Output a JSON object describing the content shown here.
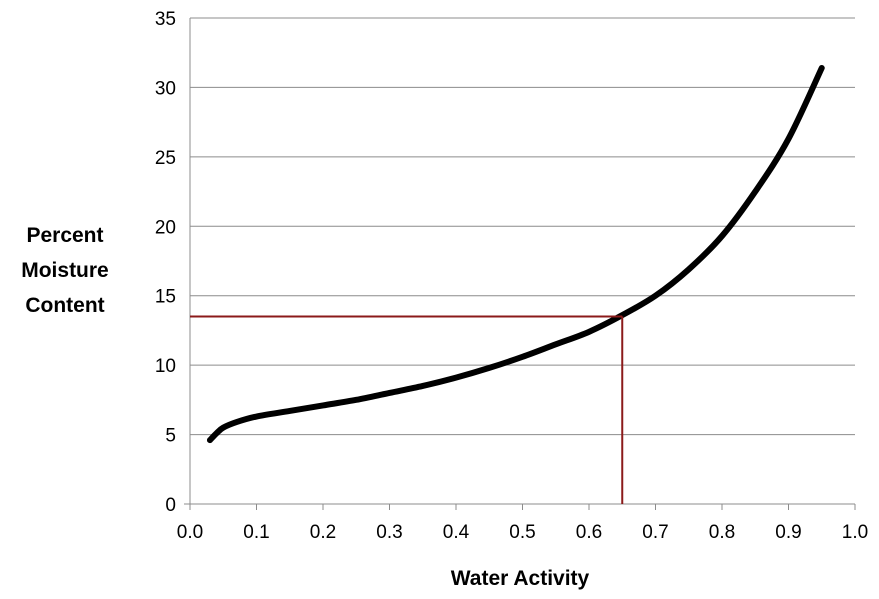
{
  "chart_data": {
    "type": "line",
    "xlabel": "Water Activity",
    "ylabel_lines": [
      "Percent",
      "Moisture",
      "Content"
    ],
    "xlim": [
      0.0,
      1.0
    ],
    "ylim": [
      0,
      35
    ],
    "x_ticks": [
      "0.0",
      "0.1",
      "0.2",
      "0.3",
      "0.4",
      "0.5",
      "0.6",
      "0.7",
      "0.8",
      "0.9",
      "1.0"
    ],
    "y_ticks": [
      "0",
      "5",
      "10",
      "15",
      "20",
      "25",
      "30",
      "35"
    ],
    "grid": "horizontal",
    "series": [
      {
        "color": "#000000",
        "x": [
          0.03,
          0.04,
          0.05,
          0.07,
          0.1,
          0.15,
          0.2,
          0.25,
          0.3,
          0.35,
          0.4,
          0.45,
          0.5,
          0.55,
          0.6,
          0.65,
          0.7,
          0.75,
          0.8,
          0.85,
          0.9,
          0.95
        ],
        "y": [
          4.6,
          5.1,
          5.5,
          5.9,
          6.3,
          6.7,
          7.1,
          7.5,
          8.0,
          8.5,
          9.1,
          9.8,
          10.6,
          11.5,
          12.4,
          13.6,
          15.0,
          16.9,
          19.3,
          22.5,
          26.3,
          31.4
        ]
      }
    ],
    "reference_lines": {
      "color": "#8b1a1a",
      "x": 0.65,
      "y": 13.5
    }
  }
}
